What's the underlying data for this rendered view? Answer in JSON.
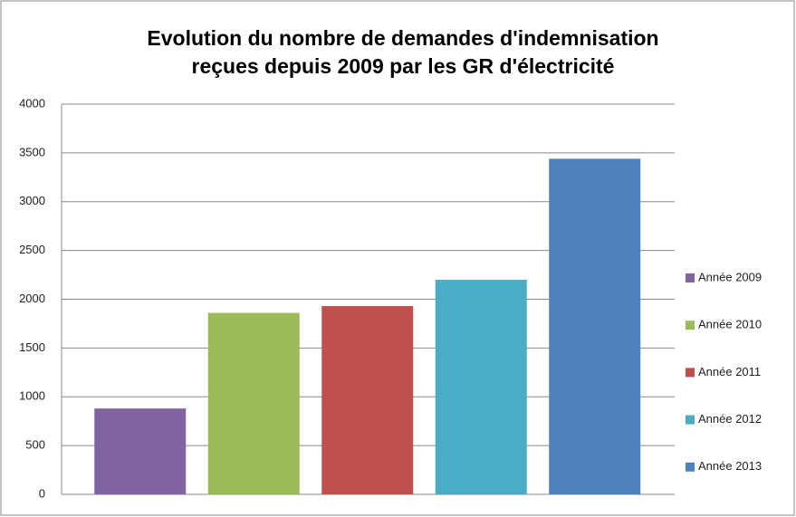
{
  "chart_data": {
    "type": "bar",
    "title": [
      "Evolution du nombre de demandes d'indemnisation",
      "reçues depuis 2009 par les GR d'électricité"
    ],
    "series": [
      {
        "name": "Année 2009",
        "color": "#8064a2",
        "values": [
          880
        ]
      },
      {
        "name": "Année 2010",
        "color": "#9bbb59",
        "values": [
          1860
        ]
      },
      {
        "name": "Année 2011",
        "color": "#c0504d",
        "values": [
          1930
        ]
      },
      {
        "name": "Année 2012",
        "color": "#4bacc6",
        "values": [
          2200
        ]
      },
      {
        "name": "Année 2013",
        "color": "#4f81bd",
        "values": [
          3440
        ]
      }
    ],
    "ylim": [
      0,
      4000
    ],
    "yticks": [
      0,
      500,
      1000,
      1500,
      2000,
      2500,
      3000,
      3500,
      4000
    ],
    "grid": true,
    "legend": "right"
  }
}
